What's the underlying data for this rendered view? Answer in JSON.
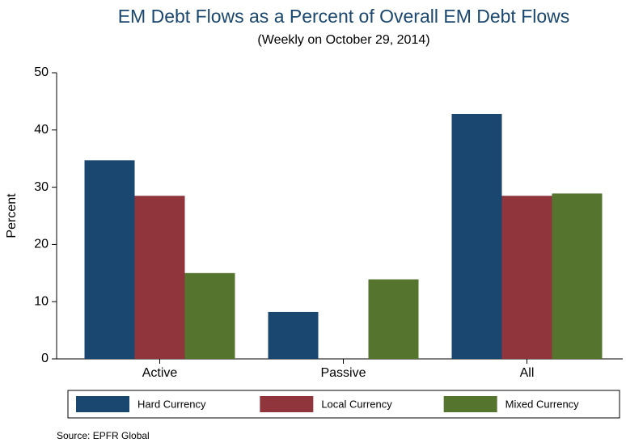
{
  "chart_data": {
    "type": "bar",
    "title": "EM Debt Flows as a Percent of Overall EM Debt Flows",
    "subtitle": "(Weekly on October 29, 2014)",
    "y_label": "Percent",
    "source": "Source: EPFR Global",
    "categories": [
      "Active",
      "Passive",
      "All"
    ],
    "series": [
      {
        "name": "Hard Currency",
        "color": "#1a476f",
        "values": [
          34.7,
          8.2,
          42.8
        ]
      },
      {
        "name": "Local Currency",
        "color": "#90353b",
        "values": [
          28.5,
          0,
          28.5
        ]
      },
      {
        "name": "Mixed Currency",
        "color": "#55752f",
        "values": [
          15.0,
          13.9,
          28.9
        ]
      }
    ],
    "ylim": [
      0,
      50
    ],
    "yticks": [
      0,
      10,
      20,
      30,
      40,
      50
    ]
  }
}
